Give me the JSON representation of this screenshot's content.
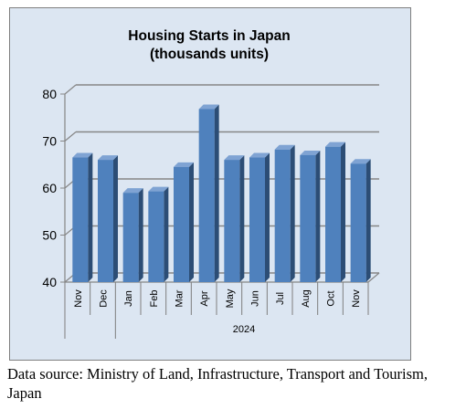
{
  "chart_data": {
    "type": "bar",
    "title": "Housing Starts in Japan",
    "subtitle": "(thousands units)",
    "categories": [
      "Nov",
      "Dec",
      "Jan",
      "Feb",
      "Mar",
      "Apr",
      "May",
      "Jun",
      "Jul",
      "Aug",
      "Oct",
      "Nov"
    ],
    "group_label": "2024",
    "values": [
      66.5,
      66,
      59,
      59.3,
      64.5,
      76.8,
      66,
      66.5,
      68.2,
      67,
      68.8,
      65.2
    ],
    "ylim": [
      40,
      80
    ],
    "yticks": [
      "40",
      "50",
      "60",
      "70",
      "80"
    ],
    "grid": true,
    "legend": "none",
    "bar_color": "#4f81bd"
  },
  "source": "Data source: Ministry of Land, Infrastructure, Transport and Tourism, Japan"
}
